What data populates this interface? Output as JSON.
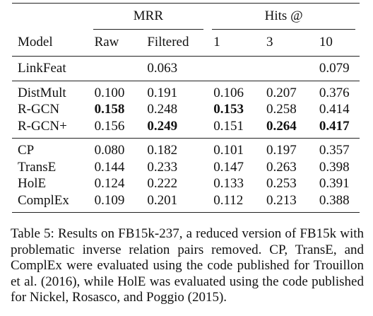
{
  "table": {
    "group_headers": [
      "MRR",
      "Hits @"
    ],
    "columns": [
      "Model",
      "Raw",
      "Filtered",
      "1",
      "3",
      "10"
    ],
    "row_groups": [
      {
        "rows": [
          {
            "cells": [
              "LinkFeat",
              null,
              "0.063",
              null,
              null,
              "0.079"
            ],
            "bold": []
          }
        ]
      },
      {
        "rows": [
          {
            "cells": [
              "DistMult",
              "0.100",
              "0.191",
              "0.106",
              "0.207",
              "0.376"
            ],
            "bold": []
          },
          {
            "cells": [
              "R-GCN",
              "0.158",
              "0.248",
              "0.153",
              "0.258",
              "0.414"
            ],
            "bold": [
              1,
              3
            ]
          },
          {
            "cells": [
              "R-GCN+",
              "0.156",
              "0.249",
              "0.151",
              "0.264",
              "0.417"
            ],
            "bold": [
              2,
              4,
              5
            ]
          }
        ]
      },
      {
        "rows": [
          {
            "cells": [
              "CP",
              "0.080",
              "0.182",
              "0.101",
              "0.197",
              "0.357"
            ],
            "bold": []
          },
          {
            "cells": [
              "TransE",
              "0.144",
              "0.233",
              "0.147",
              "0.263",
              "0.398"
            ],
            "bold": []
          },
          {
            "cells": [
              "HolE",
              "0.124",
              "0.222",
              "0.133",
              "0.253",
              "0.391"
            ],
            "bold": []
          },
          {
            "cells": [
              "ComplEx",
              "0.109",
              "0.201",
              "0.112",
              "0.213",
              "0.388"
            ],
            "bold": []
          }
        ]
      }
    ]
  },
  "caption": "Table 5: Results on FB15k-237, a reduced version of FB15k with problematic inverse relation pairs removed. CP, TransE, and ComplEx were evaluated using the code published for Trouillon et al. (2016), while HolE was evaluated using the code published for Nickel, Rosasco, and Poggio (2015)."
}
